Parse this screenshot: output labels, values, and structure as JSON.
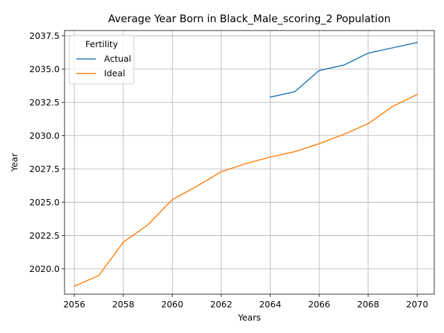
{
  "chart_data": {
    "type": "line",
    "title": "Average Year Born in Black_Male_scoring_2 Population",
    "xlabel": "Years",
    "ylabel": "Year",
    "xlim": [
      2055.6,
      2070.7
    ],
    "ylim": [
      2018.1,
      2037.9
    ],
    "xticks": [
      2056,
      2058,
      2060,
      2062,
      2064,
      2066,
      2068,
      2070
    ],
    "yticks": [
      2020.0,
      2022.5,
      2025.0,
      2027.5,
      2030.0,
      2032.5,
      2035.0,
      2037.5
    ],
    "ytick_labels": [
      "2020.0",
      "2022.5",
      "2025.0",
      "2027.5",
      "2030.0",
      "2032.5",
      "2035.0",
      "2037.5"
    ],
    "grid": true,
    "legend": {
      "title": "Fertility",
      "placement": "upper-left"
    },
    "series": [
      {
        "name": "Actual",
        "color": "#1f77b4",
        "x": [
          2064,
          2065,
          2066,
          2067,
          2068,
          2069,
          2070
        ],
        "values": [
          2032.9,
          2033.3,
          2034.9,
          2035.3,
          2036.2,
          2036.6,
          2037.0
        ]
      },
      {
        "name": "Ideal",
        "color": "#ff7f0e",
        "x": [
          2056,
          2057,
          2058,
          2059,
          2060,
          2061,
          2062,
          2063,
          2064,
          2065,
          2066,
          2067,
          2068,
          2069,
          2070
        ],
        "values": [
          2018.7,
          2019.5,
          2022.0,
          2023.3,
          2025.2,
          2026.2,
          2027.3,
          2027.9,
          2028.4,
          2028.8,
          2029.4,
          2030.1,
          2030.9,
          2032.2,
          2033.1
        ]
      }
    ]
  }
}
